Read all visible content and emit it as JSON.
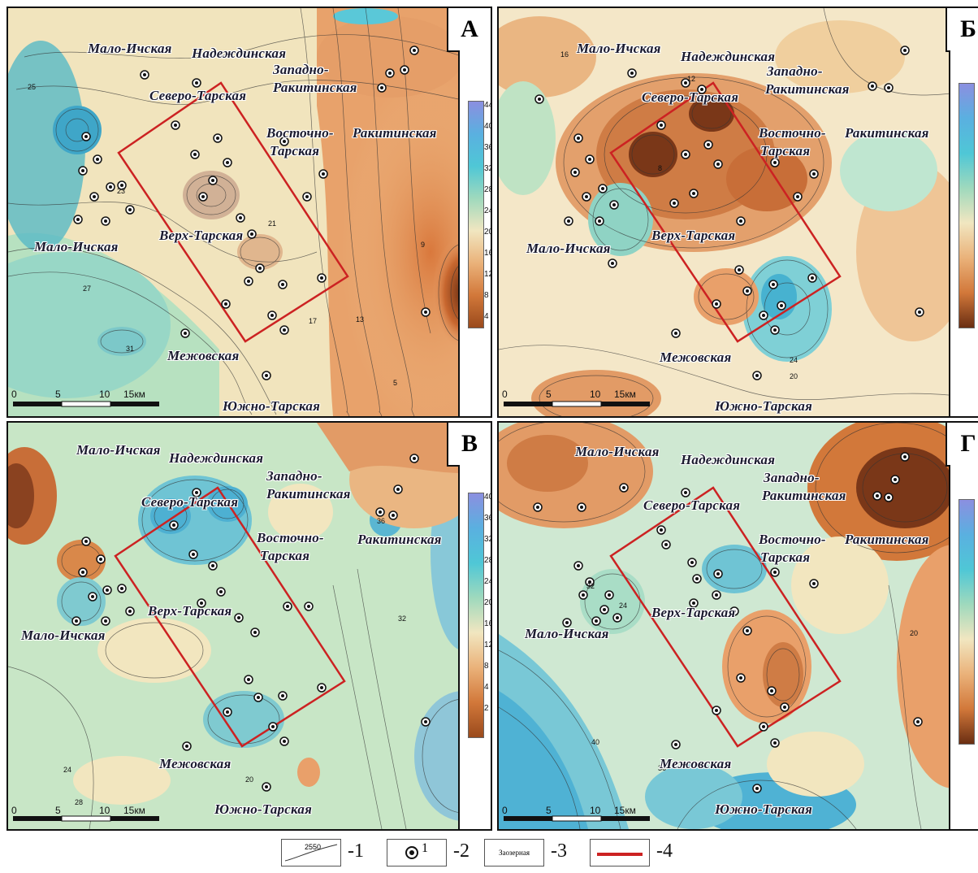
{
  "panels": {
    "A": {
      "letter": "А",
      "labels": {
        "malo_ichskaya_top": "Мало-Ичская",
        "nadezhdinskaya": "Надеждинская",
        "zapadno": "Западно-",
        "rakitinskaya_w": "Ракитинская",
        "severo_tarskaya": "Северо-Тарская",
        "vostochno": "Восточно-",
        "tarskaya": "Тарская",
        "rakitinskaya": "Ракитинская",
        "malo_ichskaya": "Мало-Ичская",
        "verkh_tarskaya": "Верх-Тарская",
        "mezhovskaya": "Межовская",
        "yuzhno_tarskaya": "Южно-Тарская"
      },
      "colorbar_ticks": [
        "44",
        "40",
        "36",
        "32",
        "28",
        "24",
        "20",
        "16",
        "12",
        "8",
        "4"
      ],
      "scale": [
        "0",
        "5",
        "10",
        "15км"
      ]
    },
    "B": {
      "letter": "Б",
      "labels": {
        "malo_ichskaya_top": "Мало-Ичская",
        "nadezhdinskaya": "Надеждинская",
        "zapadno": "Западно-",
        "rakitinskaya_w": "Ракитинская",
        "severo_tarskaya": "Северо-Тарская",
        "vostochno": "Восточно-",
        "tarskaya": "Тарская",
        "rakitinskaya": "Ракитинская",
        "malo_ichskaya": "Мало-Ичская",
        "verkh_tarskaya": "Верх-Тарская",
        "mezhovskaya": "Межовская",
        "yuzhno_tarskaya": "Южно-Тарская"
      },
      "scale": [
        "0",
        "5",
        "10",
        "15км"
      ]
    },
    "V": {
      "letter": "В",
      "labels": {
        "malo_ichskaya_top": "Мало-Ичская",
        "nadezhdinskaya": "Надеждинская",
        "zapadno": "Западно-",
        "rakitinskaya_w": "Ракитинская",
        "severo_tarskaya": "Северо-Тарская",
        "vostochno": "Восточно-",
        "tarskaya": "Тарская",
        "rakitinskaya": "Ракитинская",
        "malo_ichskaya": "Мало-Ичская",
        "verkh_tarskaya": "Верх-Тарская",
        "mezhovskaya": "Межовская",
        "yuzhno_tarskaya": "Южно-Тарская"
      },
      "colorbar_ticks": [
        "40",
        "36",
        "32",
        "28",
        "24",
        "20",
        "16",
        "12",
        "8",
        "4",
        "2"
      ],
      "scale": [
        "0",
        "5",
        "10",
        "15км"
      ]
    },
    "G": {
      "letter": "Г",
      "labels": {
        "malo_ichskaya_top": "Мало-Ичская",
        "nadezhdinskaya": "Надеждинская",
        "zapadno": "Западно-",
        "rakitinskaya_w": "Ракитинская",
        "severo_tarskaya": "Северо-Тарская",
        "vostochno": "Восточно-",
        "tarskaya": "Тарская",
        "rakitinskaya": "Ракитинская",
        "malo_ichskaya": "Мало-Ичская",
        "verkh_tarskaya": "Верх-Тарская",
        "mezhovskaya": "Межовская",
        "yuzhno_tarskaya": "Южно-Тарская"
      },
      "scale": [
        "0",
        "5",
        "10",
        "15км"
      ]
    }
  },
  "contour_labels": {
    "a": [
      "23",
      "21",
      "17",
      "31",
      "13",
      "9",
      "5",
      "27",
      "25"
    ],
    "b": [
      "16",
      "12",
      "20",
      "24",
      "8"
    ],
    "v": [
      "24",
      "20",
      "28",
      "32",
      "36"
    ],
    "g": [
      "24",
      "20",
      "32",
      "36",
      "40"
    ]
  },
  "legend": {
    "contour_sample": "2550",
    "item1": "-1",
    "well_sample": "1",
    "item2": "-2",
    "field_sample": "Заозерная",
    "item3": "-3",
    "item4": "-4"
  },
  "colors": {
    "high_blue": "#6f8fd8",
    "cyan": "#4cc3d8",
    "green": "#a8ddb5",
    "cream": "#f3e9c8",
    "orange": "#e9a06a",
    "dark_brown": "#5a2a16",
    "study_box": "#cc2222"
  }
}
